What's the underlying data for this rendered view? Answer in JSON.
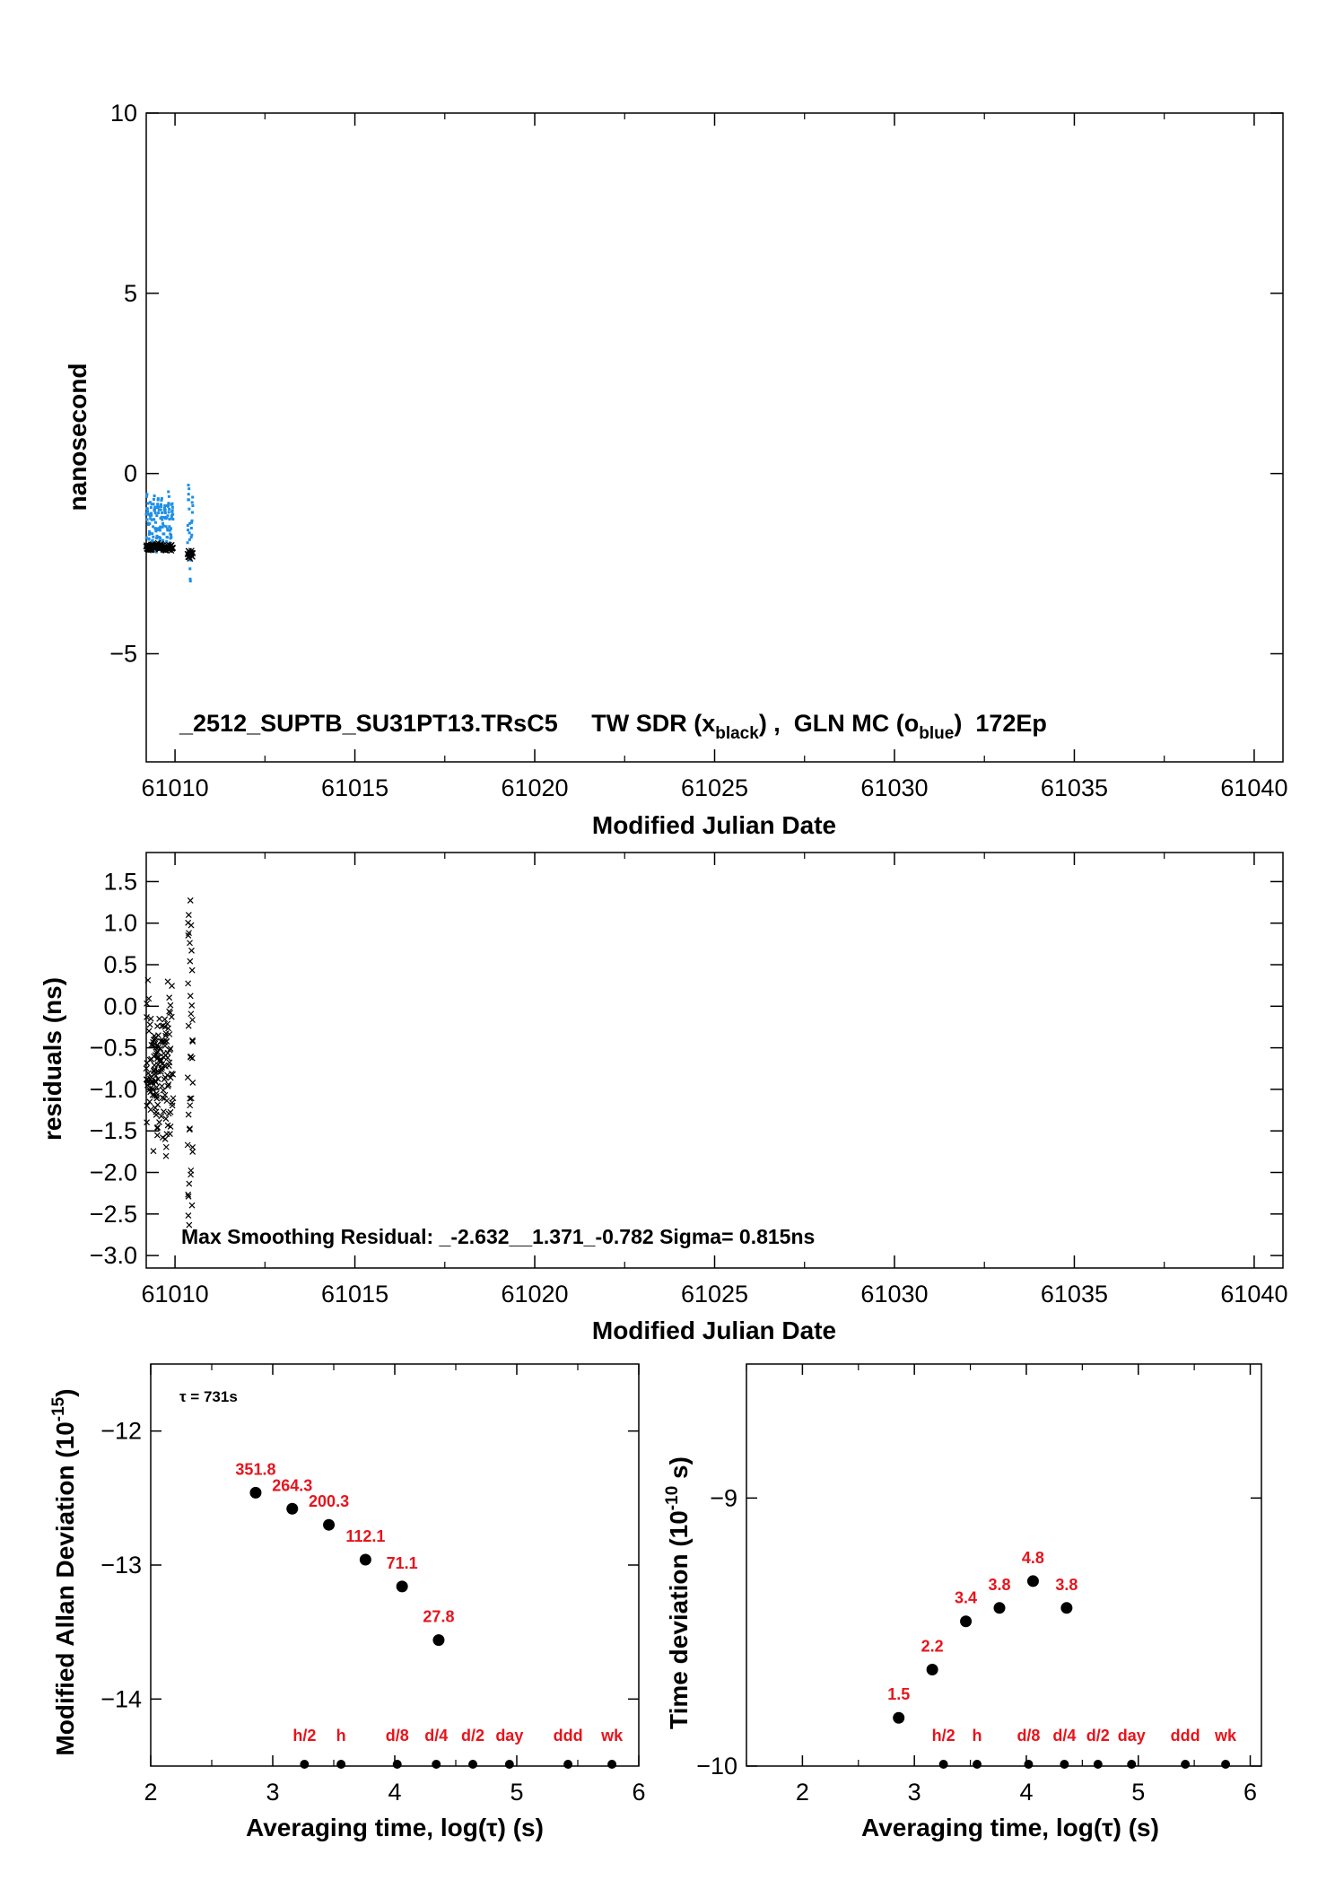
{
  "chart_data": [
    {
      "type": "scatter",
      "ylabel": "nanosecond",
      "xlabel": "Modified Julian Date",
      "xlim": [
        61009.2,
        61040.8
      ],
      "ylim": [
        -8,
        10
      ],
      "xticks": [
        "61010",
        "61015",
        "61020",
        "61025",
        "61030",
        "61035",
        "61040"
      ],
      "yticks": [
        "10",
        "5",
        "0",
        "−5"
      ],
      "annotation": {
        "prefix": "_2512_SUPTB_SU31PT13.TRsC5     TW SDR (x",
        "sub1": "black",
        "mid": ") ,  GLN MC (o",
        "sub2": "blue",
        "suffix": ")  172Ep"
      },
      "series": [
        {
          "marker": "x",
          "color": "#000000",
          "segments": [
            [
              61009.2,
              61009.95,
              -2.05,
              0.08
            ],
            [
              61010.35,
              61010.5,
              -2.25,
              0.1
            ]
          ]
        },
        {
          "marker": "o",
          "color": "#1e8fe6",
          "segments": [
            [
              61009.2,
              61009.95,
              -1.3,
              0.8
            ],
            [
              61010.35,
              61010.5,
              -1.6,
              1.3
            ]
          ]
        }
      ]
    },
    {
      "type": "scatter",
      "ylabel": "residuals (ns)",
      "xlabel": "Modified Julian Date",
      "xlim": [
        61009.2,
        61040.8
      ],
      "ylim": [
        -3.15,
        1.85
      ],
      "xticks": [
        "61010",
        "61015",
        "61020",
        "61025",
        "61030",
        "61035",
        "61040"
      ],
      "yticks": [
        "1.5",
        "1.0",
        "0.5",
        "0.0",
        "−0.5",
        "−1.0",
        "−1.5",
        "−2.0",
        "−2.5",
        "−3.0"
      ],
      "annotation": "Max Smoothing Residual: _-2.632__1.371_-0.782  Sigma= 0.815ns",
      "min": -2.632,
      "max": 1.371,
      "mean": -0.782,
      "sigma": 0.815
    },
    {
      "type": "scatter",
      "ylabel": "Modified Allan Deviation (10",
      "ylabel_sup": "-15",
      "ylabel_end": ")",
      "xlabel": "Averaging time, log(τ) (s)",
      "xlim": [
        2,
        6
      ],
      "ylim": [
        -14.5,
        -11.5
      ],
      "xticks": [
        "2",
        "3",
        "4",
        "5",
        "6"
      ],
      "yticks": [
        "−12",
        "−13",
        "−14"
      ],
      "tau_note": "τ = 731s",
      "points": [
        {
          "x": 2.86,
          "y": -12.46,
          "label": "351.8"
        },
        {
          "x": 3.16,
          "y": -12.58,
          "label": "264.3"
        },
        {
          "x": 3.46,
          "y": -12.7,
          "label": "200.3"
        },
        {
          "x": 3.76,
          "y": -12.96,
          "label": "112.1"
        },
        {
          "x": 4.06,
          "y": -13.16,
          "label": "71.1"
        },
        {
          "x": 4.36,
          "y": -13.56,
          "label": "27.8"
        }
      ],
      "markers": [
        {
          "x": 3.26,
          "label": "h/2"
        },
        {
          "x": 3.56,
          "label": "h"
        },
        {
          "x": 4.02,
          "label": "d/8"
        },
        {
          "x": 4.34,
          "label": "d/4"
        },
        {
          "x": 4.64,
          "label": "d/2"
        },
        {
          "x": 4.94,
          "label": "day"
        },
        {
          "x": 5.42,
          "label": "ddd"
        },
        {
          "x": 5.78,
          "label": "wk"
        }
      ]
    },
    {
      "type": "scatter",
      "ylabel": "Time deviation (10",
      "ylabel_sup": "-10",
      "ylabel_end": " s)",
      "xlabel": "Averaging time, log(τ) (s)",
      "xlim": [
        1.5,
        6.1
      ],
      "ylim": [
        -10,
        -8.5
      ],
      "xticks": [
        "2",
        "3",
        "4",
        "5",
        "6"
      ],
      "yticks": [
        "−9",
        "−10"
      ],
      "points": [
        {
          "x": 2.86,
          "y": -9.82,
          "label": "1.5"
        },
        {
          "x": 3.16,
          "y": -9.64,
          "label": "2.2"
        },
        {
          "x": 3.46,
          "y": -9.46,
          "label": "3.4"
        },
        {
          "x": 3.76,
          "y": -9.41,
          "label": "3.8"
        },
        {
          "x": 4.06,
          "y": -9.31,
          "label": "4.8"
        },
        {
          "x": 4.36,
          "y": -9.41,
          "label": "3.8"
        }
      ],
      "markers": [
        {
          "x": 3.26,
          "label": "h/2"
        },
        {
          "x": 3.56,
          "label": "h"
        },
        {
          "x": 4.02,
          "label": "d/8"
        },
        {
          "x": 4.34,
          "label": "d/4"
        },
        {
          "x": 4.64,
          "label": "d/2"
        },
        {
          "x": 4.94,
          "label": "day"
        },
        {
          "x": 5.42,
          "label": "ddd"
        },
        {
          "x": 5.78,
          "label": "wk"
        }
      ]
    }
  ]
}
